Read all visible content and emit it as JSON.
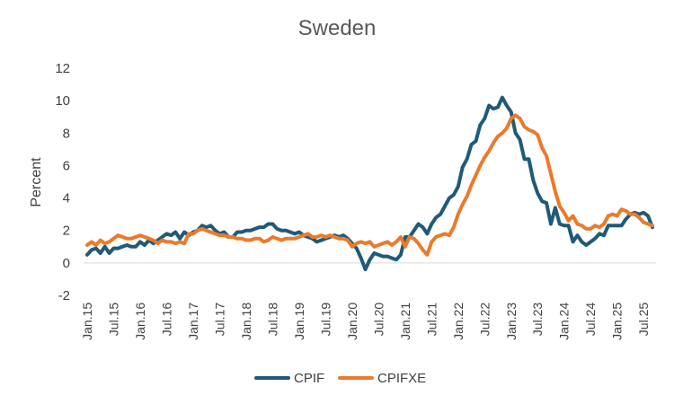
{
  "chart_data": {
    "type": "line",
    "title": "Sweden",
    "xlabel": "",
    "ylabel": "Percent",
    "ylim": [
      -2,
      12
    ],
    "yticks": [
      -2,
      0,
      2,
      4,
      6,
      8,
      10,
      12
    ],
    "grid": false,
    "legend_position": "bottom",
    "x_start": "Jan.15",
    "x_tick_labels": [
      "Jan.15",
      "Jul.15",
      "Jan.16",
      "Jul.16",
      "Jan.17",
      "Jul.17",
      "Jan.18",
      "Jul.18",
      "Jan.19",
      "Jul.19",
      "Jan.20",
      "Jul.20",
      "Jan.21",
      "Jul.21",
      "Jan.22",
      "Jul.22",
      "Jan.23",
      "Jul.23",
      "Jan.24",
      "Jul.24",
      "Jan.25",
      "Jul.25"
    ],
    "series": [
      {
        "name": "CPIF",
        "color": "#1f5a78",
        "values": [
          0.5,
          0.8,
          0.9,
          0.6,
          1.0,
          0.6,
          0.9,
          0.9,
          1.0,
          1.1,
          1.0,
          1.0,
          1.3,
          1.1,
          1.4,
          1.2,
          1.4,
          1.6,
          1.8,
          1.7,
          1.9,
          1.5,
          1.9,
          1.7,
          1.9,
          2.0,
          2.3,
          2.2,
          2.3,
          2.0,
          1.8,
          1.9,
          1.6,
          1.6,
          1.9,
          1.9,
          2.0,
          2.0,
          2.1,
          2.2,
          2.2,
          2.4,
          2.4,
          2.1,
          2.0,
          2.0,
          1.9,
          1.8,
          1.9,
          1.7,
          1.6,
          1.5,
          1.3,
          1.4,
          1.5,
          1.6,
          1.7,
          1.6,
          1.7,
          1.5,
          1.2,
          0.9,
          0.3,
          -0.4,
          0.2,
          0.6,
          0.5,
          0.4,
          0.4,
          0.3,
          0.2,
          0.5,
          1.6,
          1.6,
          2.0,
          2.4,
          2.2,
          1.8,
          2.4,
          2.8,
          3.0,
          3.5,
          4.0,
          4.2,
          4.7,
          5.9,
          6.4,
          7.3,
          7.5,
          8.5,
          8.9,
          9.7,
          9.5,
          9.6,
          10.2,
          9.7,
          9.3,
          8.0,
          7.6,
          6.4,
          6.4,
          5.1,
          4.3,
          3.8,
          3.7,
          2.4,
          3.4,
          2.4,
          2.3,
          2.3,
          1.3,
          1.7,
          1.3,
          1.1,
          1.3,
          1.5,
          1.8,
          1.7,
          2.3,
          2.3,
          2.3,
          2.3,
          2.7,
          3.0,
          3.1,
          3.0,
          3.1,
          2.9,
          2.2
        ]
      },
      {
        "name": "CPIFXE",
        "color": "#ea7b2c",
        "values": [
          1.1,
          1.3,
          1.1,
          1.4,
          1.2,
          1.3,
          1.5,
          1.7,
          1.6,
          1.5,
          1.5,
          1.6,
          1.7,
          1.6,
          1.5,
          1.4,
          1.2,
          1.4,
          1.3,
          1.3,
          1.2,
          1.3,
          1.2,
          1.8,
          1.8,
          2.0,
          2.1,
          2.0,
          1.9,
          1.8,
          1.7,
          1.7,
          1.6,
          1.6,
          1.5,
          1.5,
          1.4,
          1.4,
          1.5,
          1.5,
          1.3,
          1.4,
          1.6,
          1.5,
          1.4,
          1.5,
          1.5,
          1.5,
          1.6,
          1.7,
          1.8,
          1.6,
          1.6,
          1.7,
          1.6,
          1.7,
          1.6,
          1.5,
          1.5,
          1.4,
          1.0,
          1.2,
          1.3,
          1.2,
          1.3,
          1.0,
          1.1,
          1.2,
          1.3,
          1.1,
          1.3,
          1.6,
          1.0,
          1.6,
          1.5,
          1.2,
          0.8,
          0.5,
          1.3,
          1.6,
          1.7,
          1.8,
          1.7,
          2.2,
          3.0,
          3.6,
          4.1,
          4.8,
          5.4,
          6.0,
          6.5,
          6.9,
          7.4,
          7.8,
          8.0,
          8.3,
          8.9,
          9.1,
          8.9,
          8.4,
          8.2,
          8.1,
          7.9,
          7.1,
          6.6,
          5.5,
          4.4,
          3.5,
          3.1,
          2.6,
          2.9,
          2.4,
          2.3,
          2.1,
          2.1,
          2.3,
          2.2,
          2.4,
          2.9,
          3.0,
          2.9,
          3.3,
          3.2,
          3.0,
          3.0,
          2.8,
          2.5,
          2.4,
          2.3
        ]
      }
    ]
  }
}
